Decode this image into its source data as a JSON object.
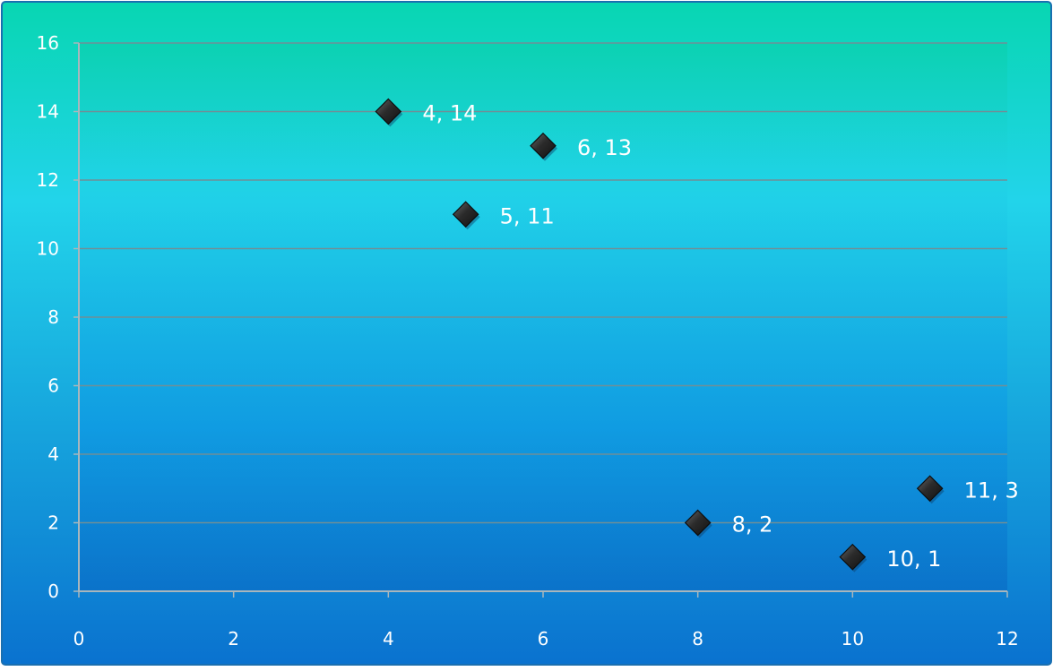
{
  "chart_data": {
    "type": "scatter",
    "title": "",
    "xlabel": "",
    "ylabel": "",
    "xlim": [
      0,
      12
    ],
    "ylim": [
      0,
      16
    ],
    "x_ticks": [
      0,
      2,
      4,
      6,
      8,
      10,
      12
    ],
    "y_ticks": [
      0,
      2,
      4,
      6,
      8,
      10,
      12,
      14,
      16
    ],
    "x_tick_labels": [
      "0",
      "2",
      "4",
      "6",
      "8",
      "10",
      "12"
    ],
    "y_tick_labels": [
      "0",
      "2",
      "4",
      "6",
      "8",
      "10",
      "12",
      "14",
      "16"
    ],
    "grid": "horizontal",
    "legend": "none",
    "marker": "diamond",
    "points": [
      {
        "x": 4,
        "y": 14,
        "label": "4, 14"
      },
      {
        "x": 6,
        "y": 13,
        "label": "6, 13"
      },
      {
        "x": 5,
        "y": 11,
        "label": "5, 11"
      },
      {
        "x": 11,
        "y": 3,
        "label": "11, 3"
      },
      {
        "x": 8,
        "y": 2,
        "label": "8, 2"
      },
      {
        "x": 10,
        "y": 1,
        "label": "10, 1"
      }
    ],
    "colors": {
      "background_top": "#08d6b2",
      "background_mid": "#22d4ea",
      "background_bottom": "#0a72cf",
      "gridline": "#6f8f97",
      "axis": "#a9b6bc",
      "tick_label": "#ffffff",
      "marker": "#2b2b2b",
      "data_label": "#ffffff"
    }
  }
}
